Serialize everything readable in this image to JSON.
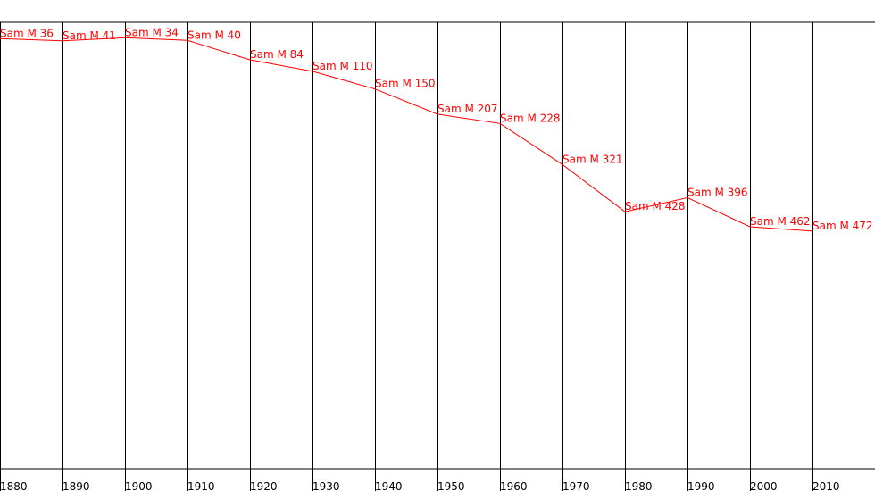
{
  "chart_data": {
    "type": "line",
    "title": "",
    "xlabel": "",
    "ylabel": "",
    "x": [
      1880,
      1890,
      1900,
      1910,
      1920,
      1930,
      1940,
      1950,
      1960,
      1970,
      1980,
      1990,
      2000,
      2010
    ],
    "x_tick_labels": [
      "1880",
      "1890",
      "1900",
      "1910",
      "1920",
      "1930",
      "1940",
      "1950",
      "1960",
      "1970",
      "1980",
      "1990",
      "2000",
      "2010"
    ],
    "y_axis_inverted": true,
    "grid": "vertical lines at each decade",
    "series": [
      {
        "values": [
          36,
          41,
          34,
          40,
          84,
          110,
          150,
          207,
          228,
          321,
          428,
          396,
          462,
          472
        ],
        "point_labels": [
          "Sam M 36",
          "Sam M 41",
          "Sam M 34",
          "Sam M 40",
          "Sam M 84",
          "Sam M 110",
          "Sam M 150",
          "Sam M 207",
          "Sam M 228",
          "Sam M 321",
          "Sam M 428",
          "Sam M 396",
          "Sam M 462",
          "Sam M 472"
        ],
        "color": "#ff0000"
      }
    ]
  },
  "colors": {
    "grid": "#000000",
    "line": "#ff0000",
    "background": "#ffffff"
  }
}
